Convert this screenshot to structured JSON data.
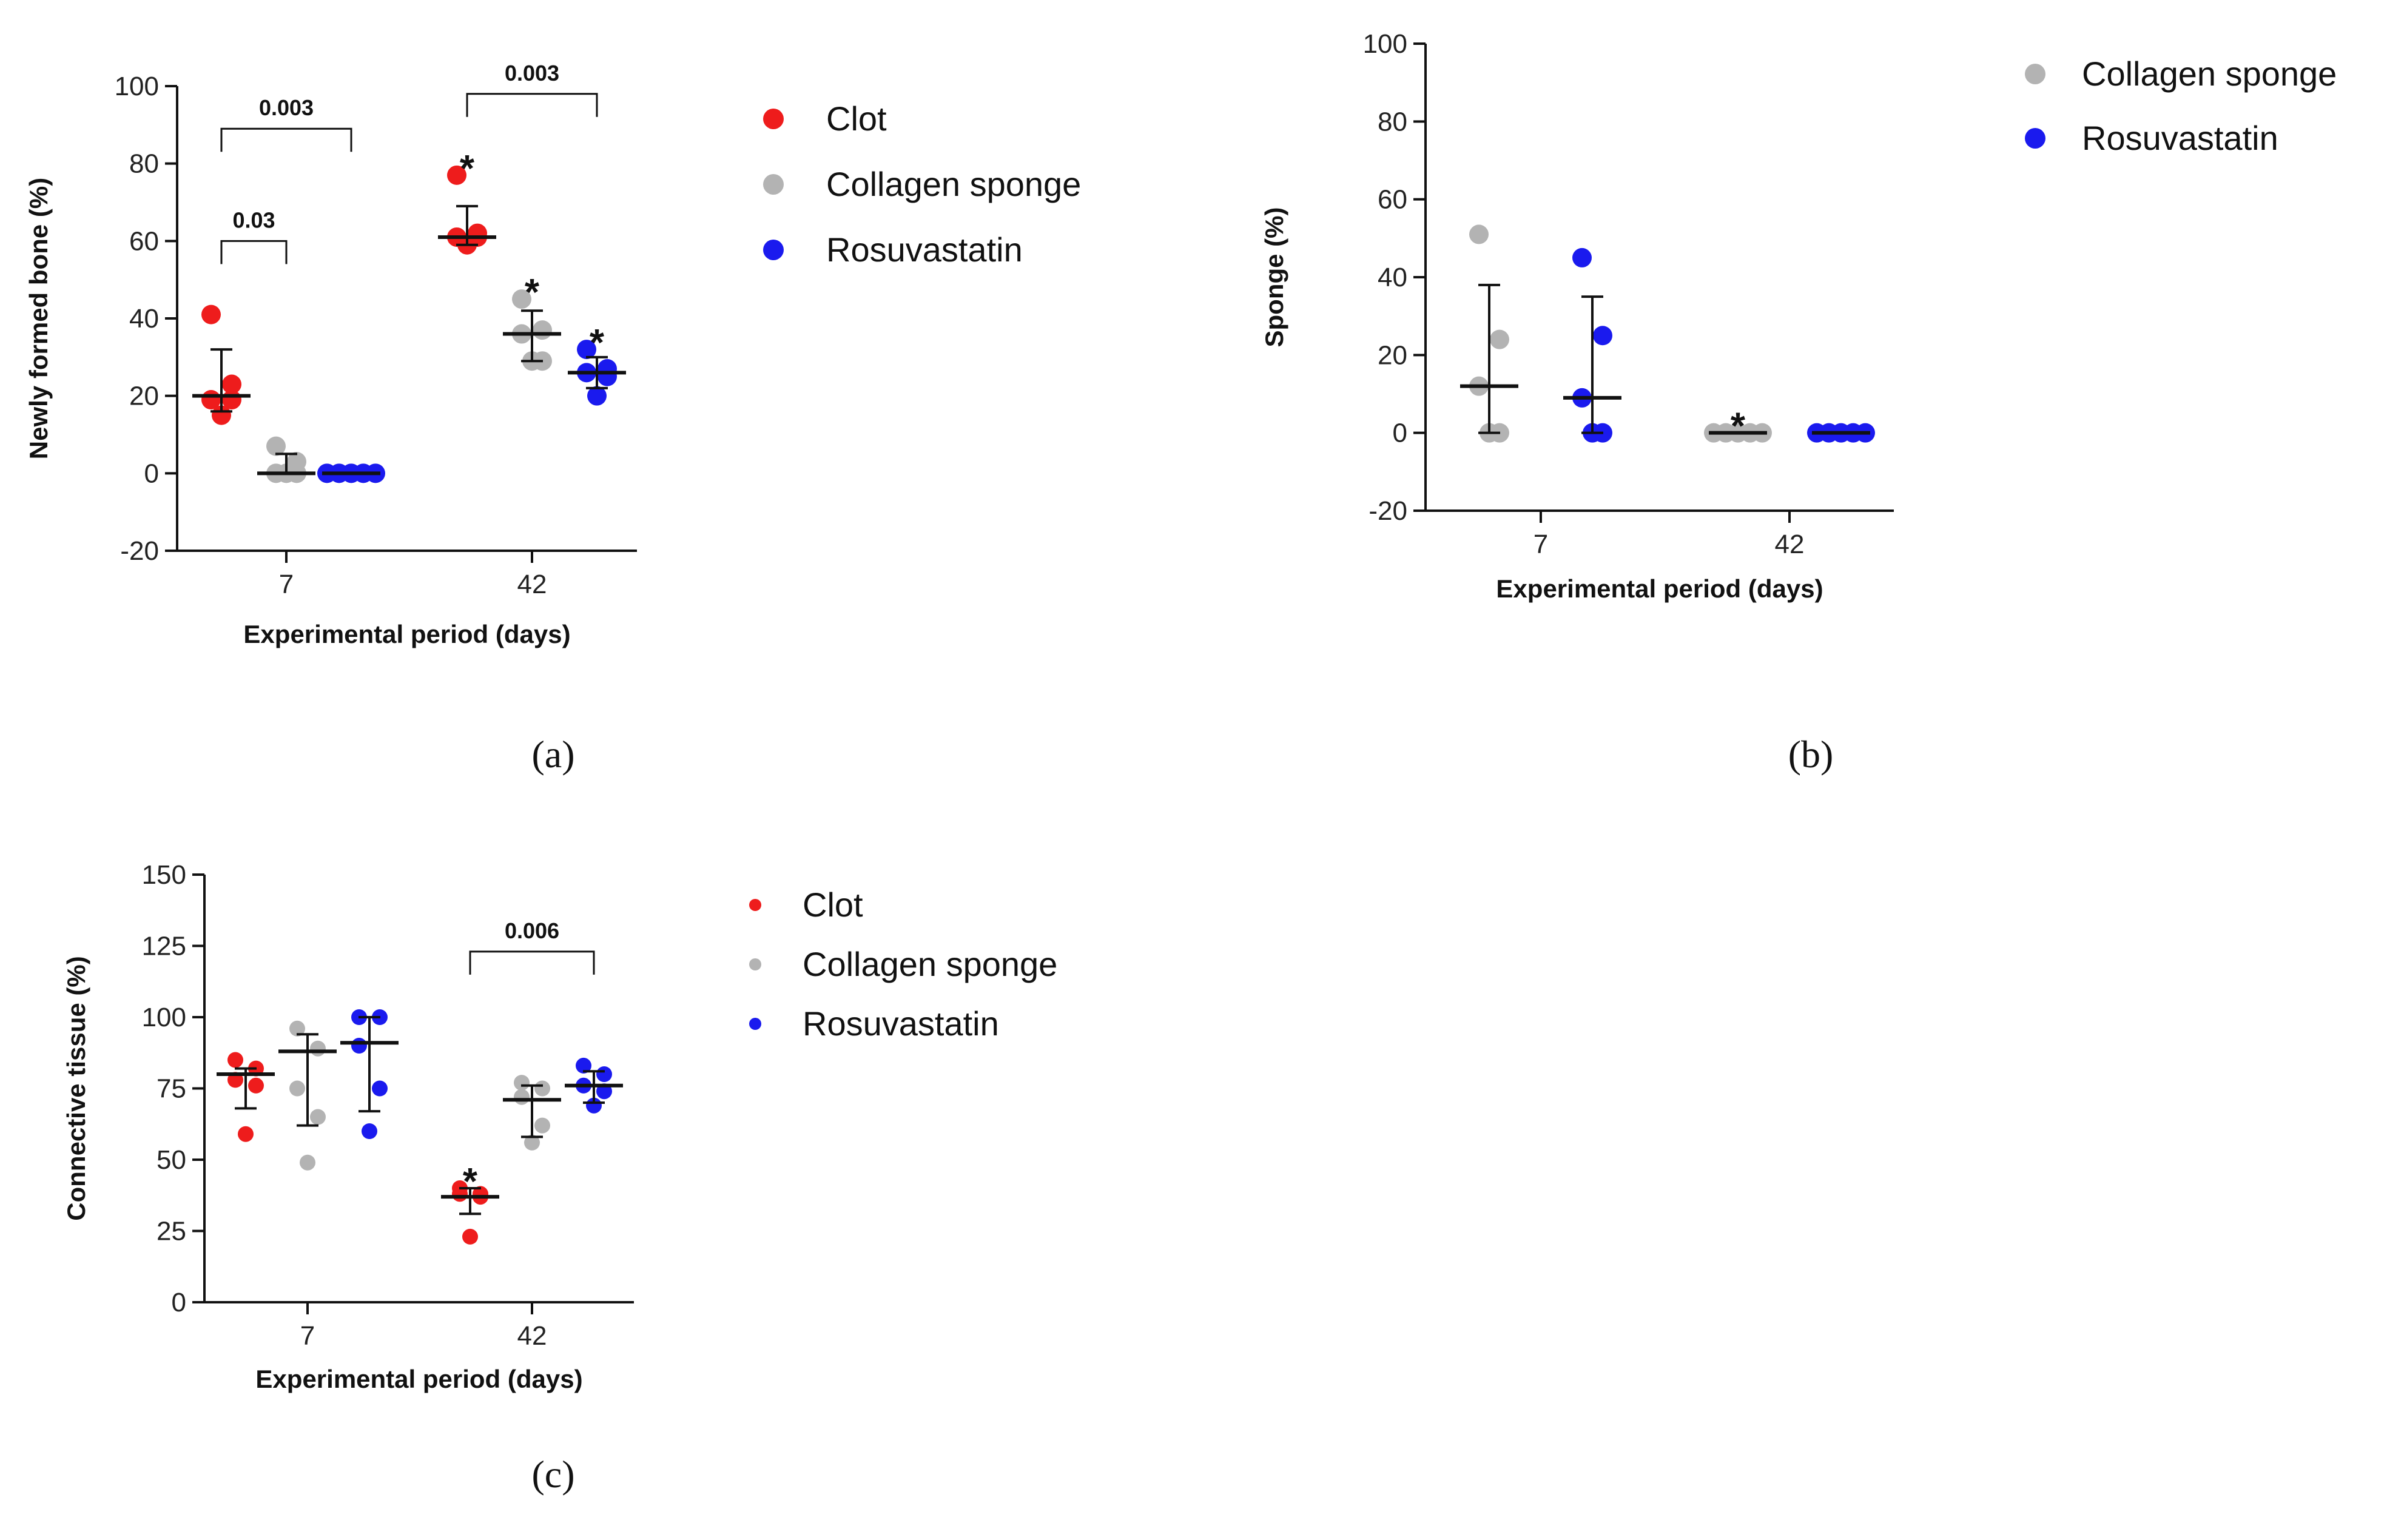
{
  "colors": {
    "Clot": "#ee1c1c",
    "Collagen sponge": "#b3b3b3",
    "Rosuvastatin": "#1a1aee"
  },
  "chart_data": [
    {
      "id": "a",
      "type": "scatter",
      "panel_label": "(a)",
      "xlabel": "Experimental period (days)",
      "ylabel": "Newly formed bone (%)",
      "ylim": [
        -20,
        100
      ],
      "yticks": [
        -20,
        0,
        20,
        40,
        60,
        80,
        100
      ],
      "categories": [
        "7",
        "42"
      ],
      "legend": [
        "Clot",
        "Collagen sponge",
        "Rosuvastatin"
      ],
      "series": [
        {
          "name": "Clot",
          "groups": [
            {
              "x": "7",
              "points": [
                41,
                23,
                19,
                19,
                15
              ],
              "center": 20,
              "err_low": 16,
              "err_high": 32
            },
            {
              "x": "42",
              "points": [
                77,
                62,
                61,
                61,
                59
              ],
              "center": 61,
              "err_low": 59,
              "err_high": 69,
              "star": true
            }
          ]
        },
        {
          "name": "Collagen sponge",
          "groups": [
            {
              "x": "7",
              "points": [
                7,
                3,
                0,
                0,
                0
              ],
              "center": 0,
              "err_low": 0,
              "err_high": 5
            },
            {
              "x": "42",
              "points": [
                45,
                37,
                36,
                29,
                29
              ],
              "center": 36,
              "err_low": 29,
              "err_high": 42,
              "star": true
            }
          ]
        },
        {
          "name": "Rosuvastatin",
          "groups": [
            {
              "x": "7",
              "points": [
                0,
                0,
                0,
                0,
                0
              ],
              "center": 0,
              "err_low": 0,
              "err_high": 0
            },
            {
              "x": "42",
              "points": [
                32,
                27,
                26,
                25,
                20
              ],
              "center": 26,
              "err_low": 22,
              "err_high": 30,
              "star": true
            }
          ]
        }
      ],
      "brackets": [
        {
          "from": [
            "Clot",
            "7"
          ],
          "to": [
            "Collagen sponge",
            "7"
          ],
          "y": 60,
          "label": "0.03"
        },
        {
          "from": [
            "Clot",
            "7"
          ],
          "to": [
            "Rosuvastatin",
            "7"
          ],
          "y": 89,
          "label": "0.003"
        },
        {
          "from": [
            "Clot",
            "42"
          ],
          "to": [
            "Rosuvastatin",
            "42"
          ],
          "y": 98,
          "label": "0.003"
        }
      ]
    },
    {
      "id": "b",
      "type": "scatter",
      "panel_label": "(b)",
      "xlabel": "Experimental period (days)",
      "ylabel": "Sponge (%)",
      "ylim": [
        -20,
        100
      ],
      "yticks": [
        -20,
        0,
        20,
        40,
        60,
        80,
        100
      ],
      "categories": [
        "7",
        "42"
      ],
      "legend": [
        "Collagen sponge",
        "Rosuvastatin"
      ],
      "series": [
        {
          "name": "Collagen sponge",
          "groups": [
            {
              "x": "7",
              "points": [
                51,
                24,
                12,
                0,
                0
              ],
              "center": 12,
              "err_low": 0,
              "err_high": 38
            },
            {
              "x": "42",
              "points": [
                0,
                0,
                0,
                0,
                0
              ],
              "center": 0,
              "err_low": 0,
              "err_high": 0,
              "star": true
            }
          ]
        },
        {
          "name": "Rosuvastatin",
          "groups": [
            {
              "x": "7",
              "points": [
                45,
                25,
                9,
                0,
                0
              ],
              "center": 9,
              "err_low": 0,
              "err_high": 35
            },
            {
              "x": "42",
              "points": [
                0,
                0,
                0,
                0,
                0
              ],
              "center": 0,
              "err_low": 0,
              "err_high": 0
            }
          ]
        }
      ],
      "brackets": []
    },
    {
      "id": "c",
      "type": "scatter",
      "panel_label": "(c)",
      "xlabel": "Experimental period (days)",
      "ylabel": "Connective tissue (%)",
      "ylim": [
        0,
        150
      ],
      "yticks": [
        0,
        25,
        50,
        75,
        100,
        125,
        150
      ],
      "categories": [
        "7",
        "42"
      ],
      "legend": [
        "Clot",
        "Collagen sponge",
        "Rosuvastatin"
      ],
      "series": [
        {
          "name": "Clot",
          "groups": [
            {
              "x": "7",
              "points": [
                85,
                82,
                78,
                76,
                59
              ],
              "center": 80,
              "err_low": 68,
              "err_high": 82
            },
            {
              "x": "42",
              "points": [
                40,
                38,
                38,
                37,
                23
              ],
              "center": 37,
              "err_low": 31,
              "err_high": 40,
              "star": true
            }
          ]
        },
        {
          "name": "Collagen sponge",
          "groups": [
            {
              "x": "7",
              "points": [
                96,
                89,
                75,
                65,
                49
              ],
              "center": 88,
              "err_low": 62,
              "err_high": 94
            },
            {
              "x": "42",
              "points": [
                77,
                75,
                72,
                62,
                56
              ],
              "center": 71,
              "err_low": 58,
              "err_high": 76
            }
          ]
        },
        {
          "name": "Rosuvastatin",
          "groups": [
            {
              "x": "7",
              "points": [
                100,
                100,
                90,
                75,
                60
              ],
              "center": 91,
              "err_low": 67,
              "err_high": 100
            },
            {
              "x": "42",
              "points": [
                83,
                80,
                76,
                74,
                69
              ],
              "center": 76,
              "err_low": 70,
              "err_high": 81
            }
          ]
        }
      ],
      "brackets": [
        {
          "from": [
            "Clot",
            "42"
          ],
          "to": [
            "Rosuvastatin",
            "42"
          ],
          "y": 123,
          "label": "0.006"
        }
      ]
    }
  ]
}
